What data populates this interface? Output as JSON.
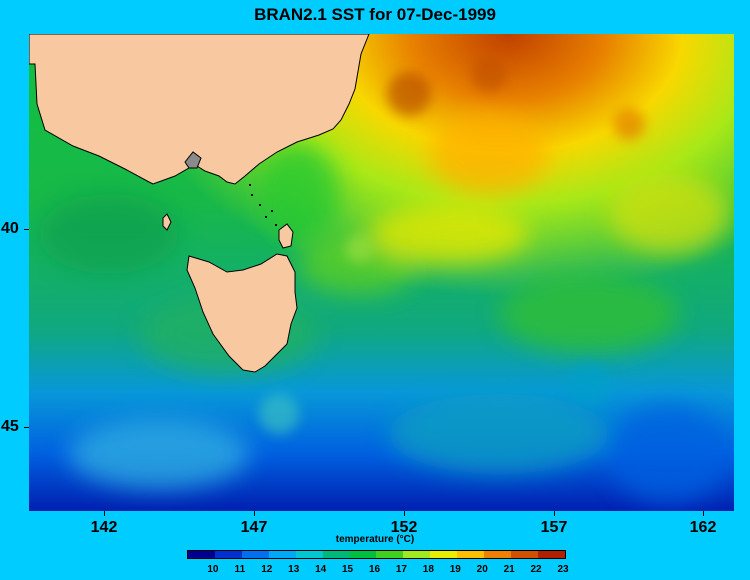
{
  "title": "BRAN2.1 SST for 07-Dec-1999",
  "map": {
    "x_ticks": [
      "142",
      "147",
      "152",
      "157",
      "162"
    ],
    "y_ticks": [
      "40",
      "45"
    ],
    "colors": {
      "background": "#00ccff",
      "land": "#f8c8a0",
      "coastline": "#000000"
    }
  },
  "colorbar": {
    "label": "temperature (°C)",
    "ticks": [
      "10",
      "11",
      "12",
      "13",
      "14",
      "15",
      "16",
      "17",
      "18",
      "19",
      "20",
      "21",
      "22",
      "23"
    ],
    "colors": [
      "#000090",
      "#0030d0",
      "#0070f0",
      "#00a8f8",
      "#00c8d0",
      "#00b878",
      "#00c040",
      "#40d020",
      "#a0e820",
      "#e8f000",
      "#ffc000",
      "#f08000",
      "#d05000",
      "#b02000"
    ]
  }
}
